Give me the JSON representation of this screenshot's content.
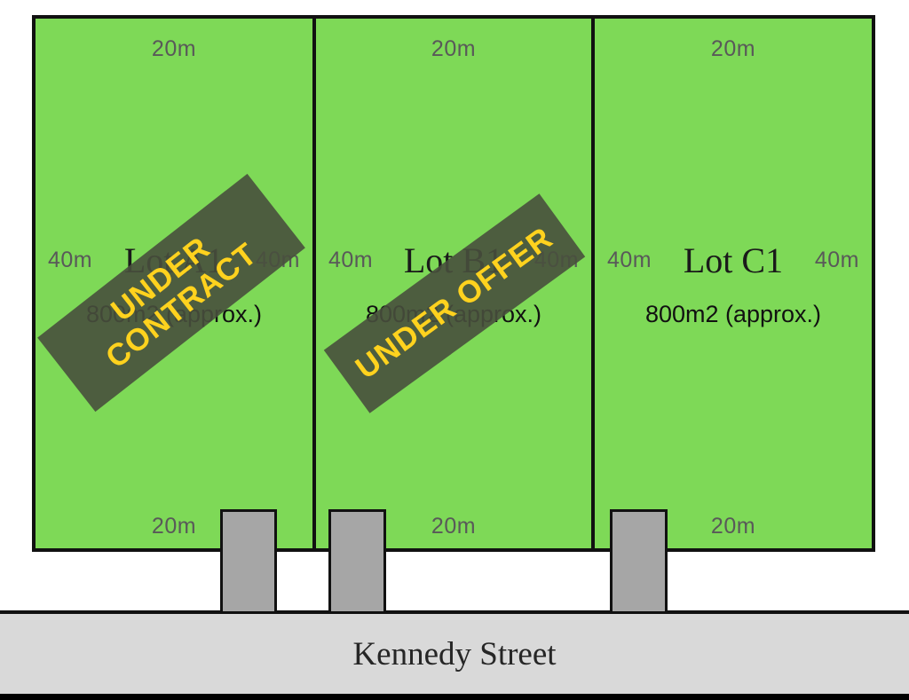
{
  "diagram": {
    "type": "land-subdivision-plan",
    "street": {
      "name": "Kennedy Street"
    },
    "colors": {
      "lot_green": "#7ed957",
      "border_black": "#111111",
      "driveway_gray": "#a6a6a6",
      "street_gray": "#d9d9d9",
      "banner_olive": "#5d6354",
      "banner_text_yellow": "#ffd21e",
      "dimension_label_gray": "#595959",
      "bottom_bar_black": "#000000"
    },
    "lots": [
      {
        "title": "Lot A1",
        "area": "800m2 (approx.)",
        "frontage_top": "20m",
        "frontage_bottom": "20m",
        "depth_left": "40m",
        "depth_right": "40m",
        "status": {
          "lines": [
            "UNDER",
            "CONTRACT"
          ]
        }
      },
      {
        "title": "Lot B1",
        "area": "800m2 (approx.)",
        "frontage_top": "20m",
        "frontage_bottom": "20m",
        "depth_left": "40m",
        "depth_right": "40m",
        "status": {
          "lines": [
            "UNDER OFFER"
          ]
        }
      },
      {
        "title": "Lot C1",
        "area": "800m2 (approx.)",
        "frontage_top": "20m",
        "frontage_bottom": "20m",
        "depth_left": "40m",
        "depth_right": "40m",
        "status": null
      }
    ]
  }
}
